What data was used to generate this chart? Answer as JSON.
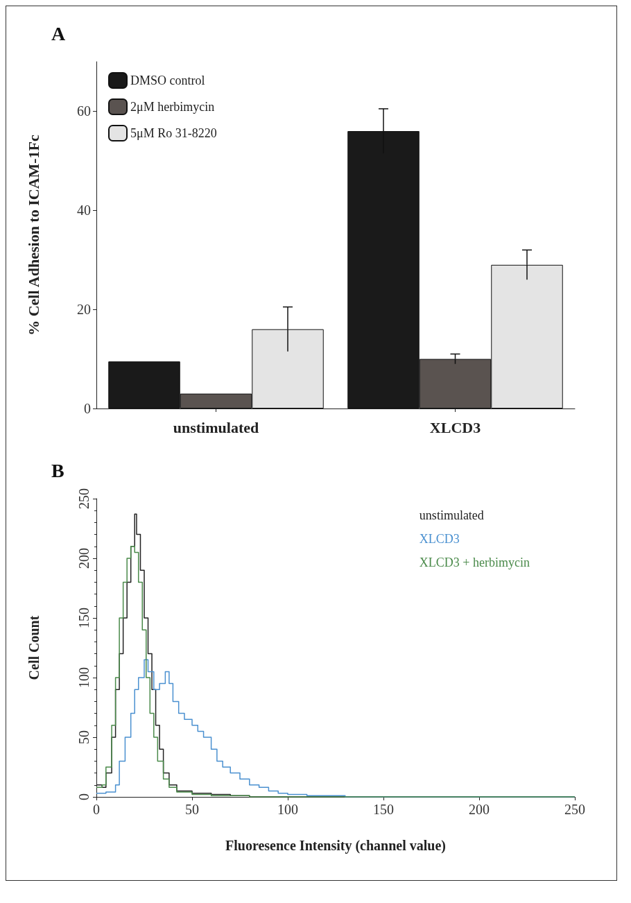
{
  "chart_data": [
    {
      "type": "bar",
      "title": "A",
      "ylabel": "% Cell Adhesion to ICAM-1Fc",
      "categories": [
        "unstimulated",
        "XLCD3"
      ],
      "ylim": [
        0,
        70
      ],
      "yticks": [
        0,
        20,
        40,
        60
      ],
      "legend": "top left",
      "grid": false,
      "series": [
        {
          "name": "DMSO control",
          "color": "#1a1a1a",
          "values": [
            9.5,
            56
          ],
          "errors": [
            null,
            4.5
          ]
        },
        {
          "name": "2μM herbimycin",
          "color": "#5a5350",
          "values": [
            3,
            10
          ],
          "errors": [
            null,
            1
          ]
        },
        {
          "name": "5μM Ro 31-8220",
          "color": "#e4e4e4",
          "values": [
            16,
            29
          ],
          "errors": [
            4.5,
            3
          ]
        }
      ]
    },
    {
      "type": "step",
      "title": "B",
      "xlabel": "Fluoresence Intensity (channel value)",
      "ylabel": "Cell Count",
      "xlim": [
        0,
        250
      ],
      "xticks": [
        0,
        50,
        100,
        150,
        200,
        250
      ],
      "ylim": [
        0,
        250
      ],
      "yticks": [
        0,
        50,
        100,
        150,
        200,
        250
      ],
      "legend": "top right",
      "grid": false,
      "series": [
        {
          "name": "unstimulated",
          "color": "#222222",
          "x": [
            0,
            3,
            5,
            8,
            10,
            12,
            14,
            16,
            18,
            20,
            21,
            23,
            25,
            27,
            29,
            31,
            33,
            35,
            38,
            42,
            50,
            60,
            70,
            80,
            120,
            250
          ],
          "values": [
            10,
            8,
            20,
            50,
            90,
            120,
            150,
            180,
            210,
            237,
            220,
            190,
            150,
            120,
            90,
            60,
            40,
            20,
            10,
            5,
            3,
            2,
            1,
            0,
            0,
            0
          ]
        },
        {
          "name": "XLCD3",
          "color": "#4a90d0",
          "x": [
            0,
            5,
            10,
            12,
            15,
            18,
            20,
            22,
            25,
            27,
            30,
            33,
            36,
            38,
            40,
            43,
            46,
            50,
            53,
            56,
            60,
            63,
            66,
            70,
            75,
            80,
            85,
            90,
            95,
            100,
            110,
            130,
            250
          ],
          "values": [
            3,
            4,
            10,
            30,
            50,
            70,
            90,
            100,
            115,
            105,
            90,
            95,
            105,
            95,
            80,
            70,
            65,
            60,
            55,
            50,
            40,
            30,
            25,
            20,
            15,
            10,
            8,
            5,
            3,
            2,
            1,
            0,
            0
          ]
        },
        {
          "name": "XLCD3 + herbimycin",
          "color": "#4a8a4a",
          "x": [
            0,
            3,
            5,
            8,
            10,
            12,
            14,
            16,
            18,
            20,
            22,
            24,
            26,
            28,
            30,
            32,
            35,
            38,
            42,
            50,
            60,
            80,
            250
          ],
          "values": [
            8,
            10,
            25,
            60,
            100,
            150,
            180,
            200,
            210,
            205,
            180,
            140,
            100,
            70,
            50,
            30,
            15,
            8,
            4,
            2,
            1,
            0,
            0
          ]
        }
      ]
    }
  ]
}
